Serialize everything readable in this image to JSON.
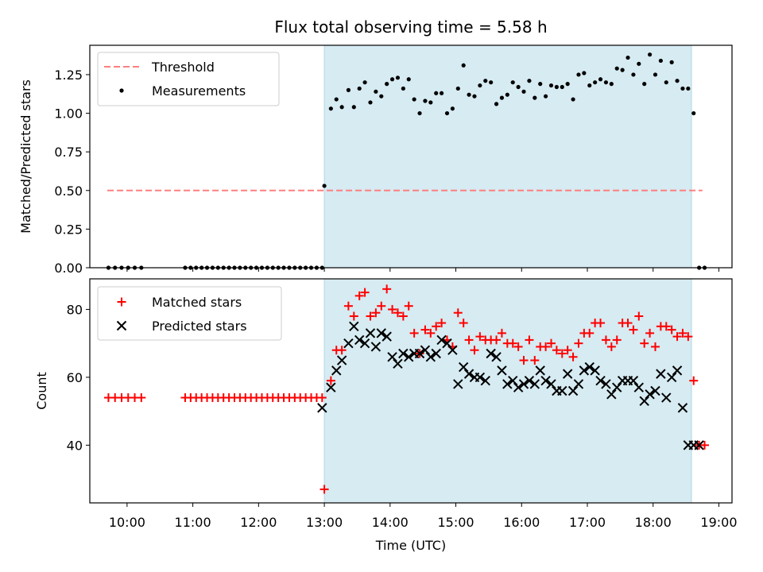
{
  "title": "Flux total observing time = 5.58 h",
  "colors": {
    "threshold": "#ff7f7f",
    "measurements": "#000000",
    "matched": "#ff0000",
    "predicted": "#000000",
    "observing_window": "#add8e6"
  },
  "chart_data": [
    {
      "type": "scatter",
      "panel": "top",
      "title": "Flux total observing time = 5.58 h",
      "xlabel": "",
      "ylabel": "Matched/Predicted stars",
      "xlim": [
        "09:26",
        "19:12"
      ],
      "ylim": [
        0,
        1.44
      ],
      "yticks": [
        "0.00",
        "0.25",
        "0.50",
        "0.75",
        "1.00",
        "1.25"
      ],
      "legend": {
        "placement": "top-left",
        "entries": [
          "Threshold",
          "Measurements"
        ]
      },
      "observing_window": [
        "13:00",
        "18:35"
      ],
      "series": [
        {
          "name": "Threshold",
          "kind": "dashed-line",
          "x": [
            "09:42",
            "18:45"
          ],
          "y": [
            0.5,
            0.5
          ]
        },
        {
          "name": "Measurements",
          "kind": "dots",
          "x": [
            "09:43",
            "09:49",
            "09:55",
            "10:01",
            "10:07",
            "10:13",
            "10:53",
            "10:58",
            "11:03",
            "11:08",
            "11:13",
            "11:18",
            "11:23",
            "11:28",
            "11:33",
            "11:38",
            "11:43",
            "11:48",
            "11:53",
            "11:58",
            "12:03",
            "12:08",
            "12:13",
            "12:18",
            "12:23",
            "12:28",
            "12:33",
            "12:38",
            "12:43",
            "12:48",
            "12:53",
            "12:58",
            "13:00",
            "13:06",
            "13:11",
            "13:16",
            "13:22",
            "13:27",
            "13:32",
            "13:37",
            "13:42",
            "13:47",
            "13:52",
            "13:57",
            "14:02",
            "14:07",
            "14:12",
            "14:17",
            "14:22",
            "14:27",
            "14:32",
            "14:37",
            "14:42",
            "14:47",
            "14:52",
            "14:57",
            "15:02",
            "15:07",
            "15:12",
            "15:17",
            "15:22",
            "15:27",
            "15:32",
            "15:37",
            "15:42",
            "15:47",
            "15:52",
            "15:57",
            "16:02",
            "16:07",
            "16:12",
            "16:17",
            "16:22",
            "16:27",
            "16:32",
            "16:37",
            "16:42",
            "16:47",
            "16:52",
            "16:57",
            "17:02",
            "17:07",
            "17:12",
            "17:17",
            "17:22",
            "17:27",
            "17:32",
            "17:37",
            "17:42",
            "17:47",
            "17:52",
            "17:57",
            "18:02",
            "18:07",
            "18:12",
            "18:17",
            "18:22",
            "18:27",
            "18:32",
            "18:37",
            "18:42",
            "18:47"
          ],
          "y": [
            0,
            0,
            0,
            0,
            0,
            0,
            0,
            0,
            0,
            0,
            0,
            0,
            0,
            0,
            0,
            0,
            0,
            0,
            0,
            0,
            0,
            0,
            0,
            0,
            0,
            0,
            0,
            0,
            0,
            0,
            0,
            0,
            0.53,
            1.03,
            1.09,
            1.04,
            1.15,
            1.04,
            1.16,
            1.2,
            1.07,
            1.14,
            1.11,
            1.19,
            1.22,
            1.23,
            1.16,
            1.22,
            1.09,
            1.0,
            1.08,
            1.07,
            1.13,
            1.13,
            1.0,
            1.03,
            1.16,
            1.31,
            1.12,
            1.11,
            1.18,
            1.21,
            1.2,
            1.06,
            1.1,
            1.12,
            1.2,
            1.17,
            1.14,
            1.21,
            1.1,
            1.19,
            1.11,
            1.18,
            1.17,
            1.17,
            1.19,
            1.09,
            1.25,
            1.26,
            1.18,
            1.2,
            1.22,
            1.2,
            1.19,
            1.29,
            1.28,
            1.36,
            1.25,
            1.32,
            1.19,
            1.38,
            1.25,
            1.34,
            1.2,
            1.33,
            1.21,
            1.16,
            1.16,
            1.0,
            0,
            0
          ]
        }
      ]
    },
    {
      "type": "scatter",
      "panel": "bottom",
      "xlabel": "Time (UTC)",
      "ylabel": "Count",
      "xlim": [
        "09:26",
        "19:12"
      ],
      "ylim": [
        23,
        89
      ],
      "yticks": [
        "40",
        "60",
        "80"
      ],
      "xticks": [
        "10:00",
        "11:00",
        "12:00",
        "13:00",
        "14:00",
        "15:00",
        "16:00",
        "17:00",
        "18:00",
        "19:00"
      ],
      "legend": {
        "placement": "top-left",
        "entries": [
          "Matched stars",
          "Predicted stars"
        ]
      },
      "observing_window": [
        "13:00",
        "18:35"
      ],
      "series": [
        {
          "name": "Matched stars",
          "marker": "plus",
          "x": [
            "09:43",
            "09:49",
            "09:55",
            "10:01",
            "10:07",
            "10:13",
            "10:53",
            "10:58",
            "11:03",
            "11:08",
            "11:13",
            "11:18",
            "11:23",
            "11:28",
            "11:33",
            "11:38",
            "11:43",
            "11:48",
            "11:53",
            "11:58",
            "12:03",
            "12:08",
            "12:13",
            "12:18",
            "12:23",
            "12:28",
            "12:33",
            "12:38",
            "12:43",
            "12:48",
            "12:53",
            "12:58",
            "13:00",
            "13:06",
            "13:11",
            "13:16",
            "13:22",
            "13:27",
            "13:32",
            "13:37",
            "13:42",
            "13:47",
            "13:52",
            "13:57",
            "14:02",
            "14:07",
            "14:12",
            "14:17",
            "14:22",
            "14:27",
            "14:32",
            "14:37",
            "14:42",
            "14:47",
            "14:52",
            "14:57",
            "15:02",
            "15:07",
            "15:12",
            "15:17",
            "15:22",
            "15:27",
            "15:32",
            "15:37",
            "15:42",
            "15:47",
            "15:52",
            "15:57",
            "16:02",
            "16:07",
            "16:12",
            "16:17",
            "16:22",
            "16:27",
            "16:32",
            "16:37",
            "16:42",
            "16:47",
            "16:52",
            "16:57",
            "17:02",
            "17:07",
            "17:12",
            "17:17",
            "17:22",
            "17:27",
            "17:32",
            "17:37",
            "17:42",
            "17:47",
            "17:52",
            "17:57",
            "18:02",
            "18:07",
            "18:12",
            "18:17",
            "18:22",
            "18:27",
            "18:32",
            "18:37",
            "18:42",
            "18:47"
          ],
          "y": [
            54,
            54,
            54,
            54,
            54,
            54,
            54,
            54,
            54,
            54,
            54,
            54,
            54,
            54,
            54,
            54,
            54,
            54,
            54,
            54,
            54,
            54,
            54,
            54,
            54,
            54,
            54,
            54,
            54,
            54,
            54,
            54,
            27,
            59,
            68,
            68,
            81,
            78,
            84,
            85,
            78,
            79,
            81,
            86,
            80,
            79,
            78,
            81,
            73,
            67,
            74,
            73,
            75,
            76,
            71,
            69,
            79,
            76,
            71,
            68,
            72,
            71,
            71,
            71,
            73,
            70,
            70,
            69,
            65,
            71,
            65,
            69,
            69,
            70,
            68,
            67,
            68,
            66,
            70,
            73,
            73,
            76,
            76,
            71,
            69,
            71,
            76,
            76,
            74,
            78,
            70,
            73,
            69,
            75,
            75,
            74,
            72,
            73,
            72,
            59,
            40,
            40
          ]
        },
        {
          "name": "Predicted stars",
          "marker": "x",
          "x": [
            "12:58",
            "13:06",
            "13:11",
            "13:16",
            "13:22",
            "13:27",
            "13:32",
            "13:37",
            "13:42",
            "13:47",
            "13:52",
            "13:57",
            "14:02",
            "14:07",
            "14:12",
            "14:17",
            "14:22",
            "14:27",
            "14:32",
            "14:37",
            "14:42",
            "14:47",
            "14:52",
            "14:57",
            "15:02",
            "15:07",
            "15:12",
            "15:17",
            "15:22",
            "15:27",
            "15:32",
            "15:37",
            "15:42",
            "15:47",
            "15:52",
            "15:57",
            "16:02",
            "16:07",
            "16:12",
            "16:17",
            "16:22",
            "16:27",
            "16:32",
            "16:37",
            "16:42",
            "16:47",
            "16:52",
            "16:57",
            "17:02",
            "17:07",
            "17:12",
            "17:17",
            "17:22",
            "17:27",
            "17:32",
            "17:37",
            "17:42",
            "17:47",
            "17:52",
            "17:57",
            "18:02",
            "18:07",
            "18:12",
            "18:17",
            "18:22",
            "18:27",
            "18:32",
            "18:37",
            "18:42"
          ],
          "y": [
            51,
            57,
            62,
            65,
            70,
            75,
            71,
            70,
            73,
            69,
            73,
            72,
            66,
            64,
            67,
            66,
            67,
            67,
            68,
            66,
            67,
            71,
            70,
            68,
            58,
            63,
            61,
            60,
            60,
            59,
            67,
            66,
            62,
            58,
            59,
            57,
            58,
            59,
            58,
            62,
            59,
            58,
            56,
            56,
            61,
            56,
            58,
            62,
            63,
            62,
            59,
            58,
            55,
            57,
            59,
            59,
            59,
            57,
            53,
            55,
            56,
            61,
            54,
            60,
            62,
            51,
            40,
            40,
            40
          ]
        }
      ]
    }
  ]
}
